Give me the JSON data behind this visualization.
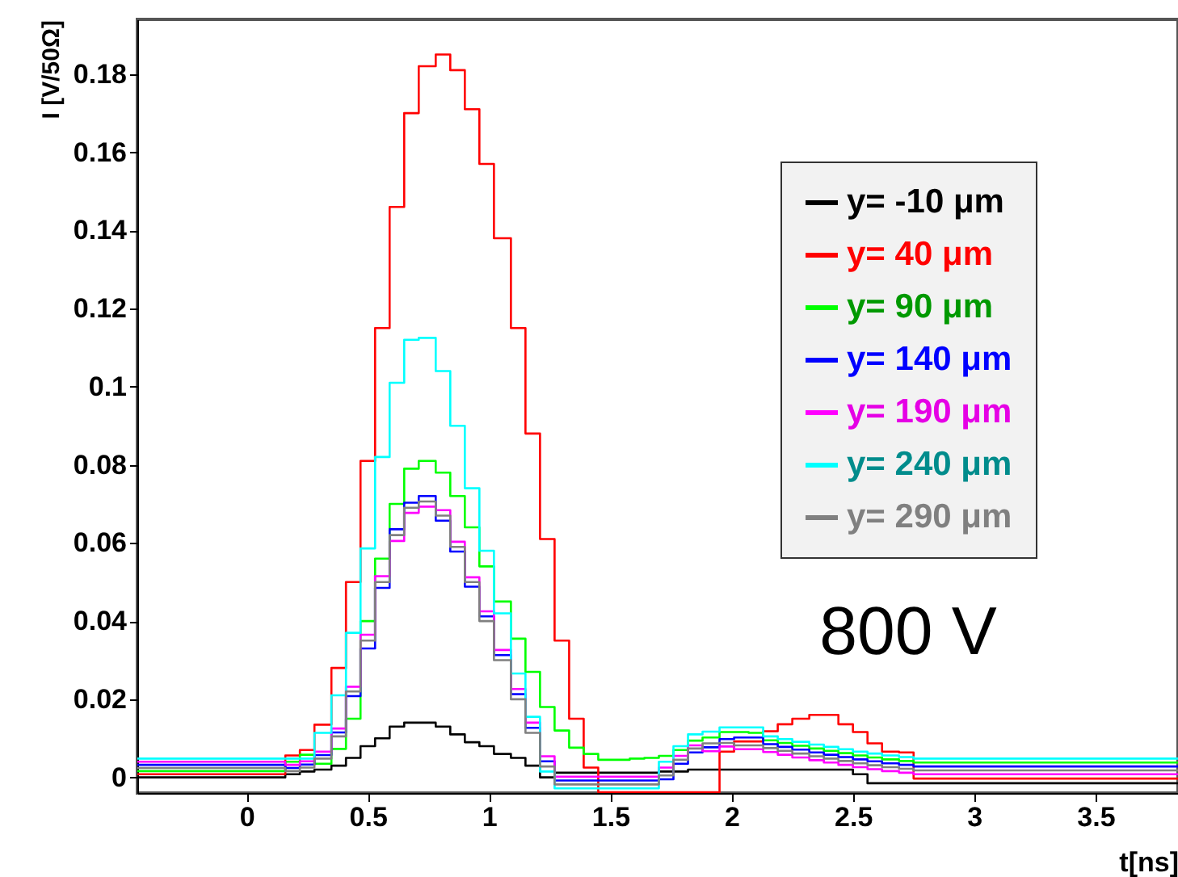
{
  "chart_data": {
    "type": "step",
    "xlabel": "t[ns]",
    "ylabel": "I [V/50Ω]",
    "annotations": [
      "800 V"
    ],
    "xlim": [
      -0.45,
      3.84
    ],
    "ylim": [
      -0.004,
      0.194
    ],
    "xticks": [
      0,
      0.5,
      1,
      1.5,
      2,
      2.5,
      3,
      3.5
    ],
    "yticks": [
      0,
      0.02,
      0.04,
      0.06,
      0.08,
      0.1,
      0.12,
      0.14,
      0.16,
      0.18
    ],
    "grid": false,
    "legend": "top right",
    "x": [
      -0.45,
      0.1,
      0.16,
      0.22,
      0.28,
      0.35,
      0.41,
      0.47,
      0.53,
      0.59,
      0.65,
      0.71,
      0.78,
      0.84,
      0.9,
      0.96,
      1.02,
      1.09,
      1.15,
      1.21,
      1.27,
      1.33,
      1.39,
      1.45,
      1.52,
      1.58,
      1.64,
      1.7,
      1.76,
      1.82,
      1.88,
      1.95,
      2.01,
      2.07,
      2.13,
      2.19,
      2.25,
      2.32,
      2.38,
      2.44,
      2.5,
      2.56,
      2.62,
      2.69,
      2.75,
      2.81,
      3.0,
      3.5,
      3.84
    ],
    "series": [
      {
        "name": "y= -10 μm",
        "color": "#000000",
        "values": [
          0.0,
          0.0,
          0.0008,
          0.0015,
          0.002,
          0.003,
          0.005,
          0.008,
          0.01,
          0.013,
          0.014,
          0.014,
          0.013,
          0.011,
          0.009,
          0.008,
          0.006,
          0.005,
          0.003,
          0.0,
          0.0012,
          0.0012,
          0.0012,
          0.0012,
          0.0012,
          0.0012,
          0.0012,
          0.0015,
          0.0015,
          0.002,
          0.002,
          0.002,
          0.002,
          0.002,
          0.002,
          0.002,
          0.002,
          0.002,
          0.002,
          0.002,
          0.0008,
          -0.0015,
          -0.0015,
          -0.0015,
          -0.0015,
          -0.0015,
          -0.0015,
          -0.0015,
          -0.0015
        ]
      },
      {
        "name": "y= 40 μm",
        "color": "#ff0000",
        "values": [
          0.0008,
          0.0008,
          0.0056,
          0.007,
          0.0135,
          0.028,
          0.05,
          0.081,
          0.115,
          0.146,
          0.17,
          0.182,
          0.185,
          0.181,
          0.171,
          0.157,
          0.138,
          0.115,
          0.088,
          0.061,
          0.035,
          0.015,
          0.0025,
          -0.0038,
          -0.0038,
          -0.0038,
          -0.0038,
          -0.0038,
          -0.0038,
          -0.0038,
          -0.0038,
          0.0066,
          0.0092,
          0.0092,
          0.0118,
          0.0136,
          0.015,
          0.016,
          0.016,
          0.0136,
          0.0116,
          0.0087,
          0.0066,
          0.0064,
          -0.0003,
          -0.0003,
          -0.0003,
          -0.0003,
          -0.0003
        ]
      },
      {
        "name": "y= 90 μm",
        "color": "#00ff00",
        "values": [
          0.0016,
          0.0016,
          0.004,
          0.0058,
          0.0035,
          0.0073,
          0.015,
          0.04,
          0.056,
          0.07,
          0.079,
          0.081,
          0.078,
          0.072,
          0.064,
          0.054,
          0.045,
          0.0355,
          0.027,
          0.018,
          0.012,
          0.0076,
          0.006,
          0.0045,
          0.0045,
          0.0048,
          0.005,
          0.0055,
          0.007,
          0.0094,
          0.0102,
          0.0116,
          0.0116,
          0.0114,
          0.0095,
          0.0088,
          0.0081,
          0.0074,
          0.0068,
          0.0062,
          0.0056,
          0.0051,
          0.0046,
          0.0042,
          0.0038,
          0.0038,
          0.0038,
          0.0038,
          0.0038
        ]
      },
      {
        "name": "y= 140 μm",
        "color": "#0000ff",
        "values": [
          0.0032,
          0.0032,
          0.0024,
          0.0033,
          0.0057,
          0.0115,
          0.0208,
          0.033,
          0.0485,
          0.0635,
          0.0703,
          0.072,
          0.0657,
          0.0578,
          0.0488,
          0.0412,
          0.0313,
          0.0213,
          0.0127,
          0.0041,
          -0.0008,
          -0.0008,
          -0.0008,
          -0.0008,
          -0.0008,
          -0.0008,
          -0.0008,
          -0.0005,
          0.0035,
          0.0064,
          0.0077,
          0.0098,
          0.0102,
          0.0102,
          0.0085,
          0.0078,
          0.0071,
          0.0064,
          0.0058,
          0.0052,
          0.0046,
          0.0041,
          0.0036,
          0.0032,
          0.0028,
          0.0028,
          0.0028,
          0.0028,
          0.0028
        ]
      },
      {
        "name": "y= 190 μm",
        "color": "#ff00ff",
        "values": [
          0.004,
          0.004,
          0.0032,
          0.0041,
          0.0066,
          0.0125,
          0.0232,
          0.0365,
          0.0515,
          0.0605,
          0.0677,
          0.0693,
          0.0684,
          0.0603,
          0.0512,
          0.0425,
          0.0326,
          0.0226,
          0.014,
          0.0054,
          0.0002,
          0.0002,
          0.0002,
          0.0002,
          0.0002,
          0.0002,
          0.0002,
          0.0025,
          0.0055,
          0.0082,
          0.0067,
          0.0079,
          0.0072,
          0.0072,
          0.0065,
          0.0058,
          0.0051,
          0.0044,
          0.0038,
          0.0032,
          0.0026,
          0.0021,
          0.0016,
          0.0012,
          0.0008,
          0.0008,
          0.0008,
          0.0008,
          0.0008
        ]
      },
      {
        "name": "y= 240 μm",
        "color": "#00ffff",
        "values": [
          0.0048,
          0.0048,
          0.0048,
          0.0048,
          0.0114,
          0.021,
          0.037,
          0.0586,
          0.082,
          0.101,
          0.112,
          0.1125,
          0.104,
          0.09,
          0.074,
          0.058,
          0.042,
          0.0266,
          0.0155,
          0.0015,
          -0.0028,
          -0.0028,
          -0.0028,
          -0.0028,
          -0.0028,
          -0.0028,
          -0.0028,
          0.004,
          0.008,
          0.011,
          0.0117,
          0.0128,
          0.0128,
          0.0128,
          0.0105,
          0.0098,
          0.0091,
          0.0084,
          0.0078,
          0.0072,
          0.0066,
          0.0061,
          0.0056,
          0.0052,
          0.0048,
          0.0048,
          0.0048,
          0.0048,
          0.0048
        ]
      },
      {
        "name": "y= 290 μm",
        "color": "#808080",
        "values": [
          0.0024,
          0.0024,
          0.0016,
          0.0025,
          0.0048,
          0.0105,
          0.022,
          0.035,
          0.05,
          0.062,
          0.069,
          0.0706,
          0.067,
          0.059,
          0.05,
          0.04,
          0.03,
          0.02,
          0.0114,
          0.0028,
          -0.0018,
          -0.0018,
          -0.0018,
          -0.0018,
          -0.0018,
          -0.0018,
          -0.0018,
          0.0005,
          0.0045,
          0.0074,
          0.0087,
          0.0088,
          0.0082,
          0.0082,
          0.0075,
          0.0068,
          0.0061,
          0.0054,
          0.0048,
          0.0042,
          0.0036,
          0.0031,
          0.0026,
          0.0022,
          0.0018,
          0.0018,
          0.0018,
          0.0018,
          0.0018
        ]
      }
    ]
  }
}
